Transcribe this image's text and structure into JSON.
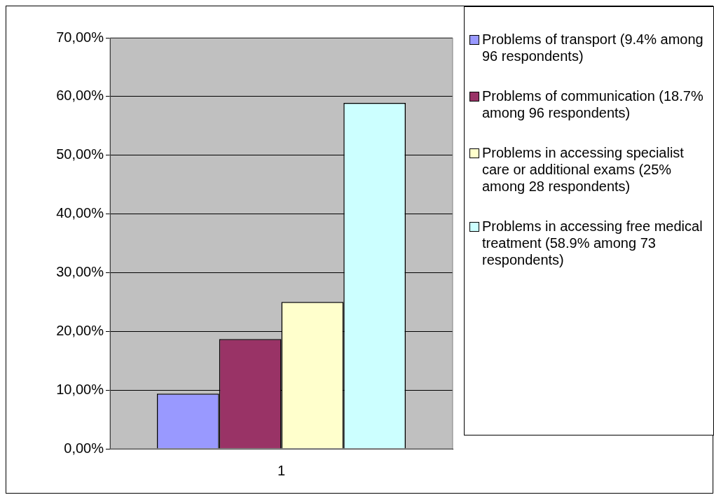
{
  "chart_data": {
    "type": "bar",
    "categories": [
      "1"
    ],
    "series": [
      {
        "name": "Problems of transport (9.4% among 96 respondents)",
        "color": "#9999ff",
        "values": [
          9.4
        ]
      },
      {
        "name": "Problems of communication (18.7% among 96 respondents)",
        "color": "#993366",
        "values": [
          18.7
        ]
      },
      {
        "name": "Problems in accessing specialist care or additional exams (25% among 28 respondents)",
        "color": "#ffffcc",
        "values": [
          25
        ]
      },
      {
        "name": "Problems in accessing free medical treatment (58.9% among 73 respondents)",
        "color": "#ccffff",
        "values": [
          58.9
        ]
      }
    ],
    "ylim": [
      0,
      70
    ],
    "yticks": [
      {
        "value": 0,
        "label": "0,00%"
      },
      {
        "value": 10,
        "label": "10,00%"
      },
      {
        "value": 20,
        "label": "20,00%"
      },
      {
        "value": 30,
        "label": "30,00%"
      },
      {
        "value": 40,
        "label": "40,00%"
      },
      {
        "value": 50,
        "label": "50,00%"
      },
      {
        "value": 60,
        "label": "60,00%"
      },
      {
        "value": 70,
        "label": "70,00%"
      }
    ],
    "grid": "y",
    "legend": "right"
  }
}
